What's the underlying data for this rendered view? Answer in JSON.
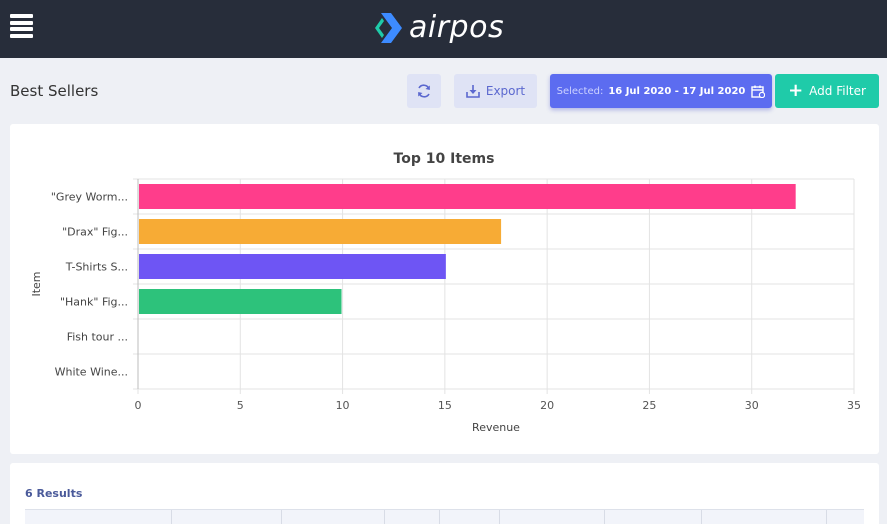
{
  "header": {
    "logo_text": "airpos",
    "brand_color": "#272d3a",
    "logo_colors": [
      "#1fcba9",
      "#3d8bff"
    ]
  },
  "page": {
    "title": "Best Sellers"
  },
  "toolbar": {
    "refresh_icon": "refresh-icon",
    "export_label": "Export",
    "export_icon": "download-tray-icon",
    "date_prefix": "Selected:",
    "date_value": "16 Jul 2020 - 17 Jul 2020",
    "date_icon": "calendar-icon",
    "add_filter_label": "Add Filter",
    "add_filter_icon": "plus-icon"
  },
  "chart_data": {
    "type": "bar",
    "orientation": "horizontal",
    "title": "Top 10 Items",
    "xlabel": "Revenue",
    "ylabel": "Item",
    "categories": [
      "\"Grey Worm...",
      "\"Drax\" Fig...",
      "T-Shirts S...",
      "\"Hank\" Fig...",
      "Fish tour ...",
      "White Wine..."
    ],
    "values": [
      32.1,
      17.7,
      15.0,
      9.9,
      0,
      0
    ],
    "colors": [
      "#ff3d8b",
      "#f7ab35",
      "#6e55f4",
      "#2dc27b",
      "#cccccc",
      "#cccccc"
    ],
    "xlim": [
      0,
      35
    ],
    "xticks": [
      "0",
      "5",
      "10",
      "15",
      "20",
      "25",
      "30",
      "35"
    ],
    "grid": true
  },
  "results": {
    "count_label": "6 Results"
  }
}
